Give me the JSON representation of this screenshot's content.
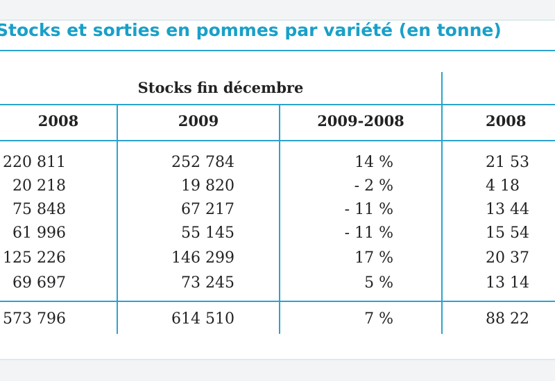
{
  "table": {
    "title": "Stocks et sorties en pommes par variété (en tonne)",
    "group_header": "Stocks fin décembre",
    "columns": [
      "2008",
      "2009",
      "2009-2008",
      "2008"
    ],
    "rows": [
      [
        "220 811",
        "252 784",
        "14 %",
        "21 53"
      ],
      [
        "20 218",
        "19 820",
        "- 2 %",
        "4 18"
      ],
      [
        "75 848",
        "67 217",
        "- 11 %",
        "13 44"
      ],
      [
        "61 996",
        "55 145",
        "- 11 %",
        "15 54"
      ],
      [
        "125 226",
        "146 299",
        "17 %",
        "20 37"
      ],
      [
        "69 697",
        "73 245",
        "5 %",
        "13 14"
      ]
    ],
    "total": [
      "573 796",
      "614 510",
      "7 %",
      "88 22"
    ]
  }
}
